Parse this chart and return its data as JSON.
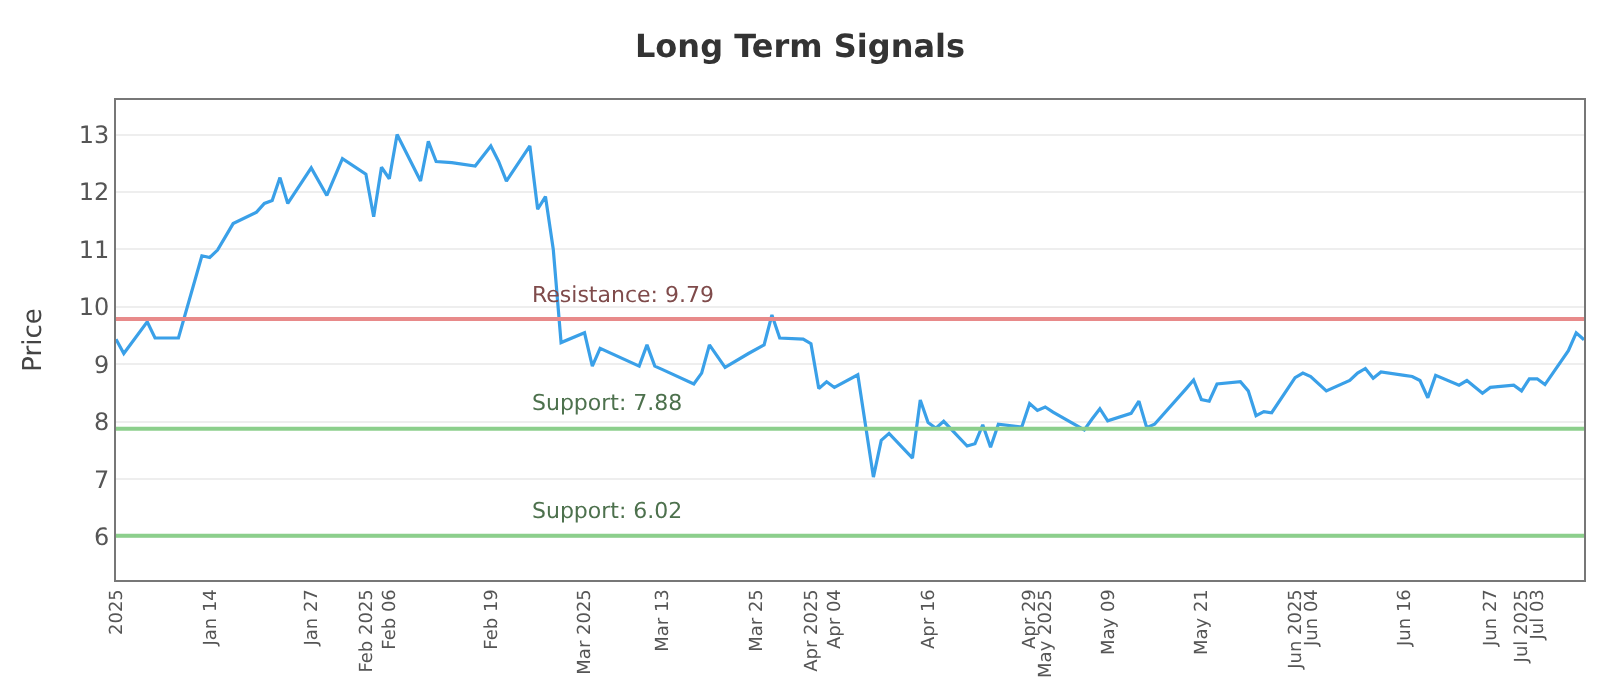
{
  "chart_data": {
    "type": "line",
    "title": "Long Term Signals",
    "ylabel": "Price",
    "x": [
      "2025-01-02",
      "2025-01-03",
      "2025-01-06",
      "2025-01-07",
      "2025-01-10",
      "2025-01-13",
      "2025-01-14",
      "2025-01-15",
      "2025-01-16",
      "2025-01-17",
      "2025-01-20",
      "2025-01-21",
      "2025-01-22",
      "2025-01-23",
      "2025-01-24",
      "2025-01-27",
      "2025-01-29",
      "2025-01-31",
      "2025-02-03",
      "2025-02-04",
      "2025-02-05",
      "2025-02-06",
      "2025-02-07",
      "2025-02-10",
      "2025-02-11",
      "2025-02-12",
      "2025-02-14",
      "2025-02-17",
      "2025-02-19",
      "2025-02-20",
      "2025-02-21",
      "2025-02-24",
      "2025-02-25",
      "2025-02-26",
      "2025-02-27",
      "2025-02-28",
      "2025-03-03",
      "2025-03-04",
      "2025-03-05",
      "2025-03-10",
      "2025-03-11",
      "2025-03-12",
      "2025-03-13",
      "2025-03-17",
      "2025-03-18",
      "2025-03-19",
      "2025-03-21",
      "2025-03-24",
      "2025-03-26",
      "2025-03-27",
      "2025-03-28",
      "2025-03-31",
      "2025-04-01",
      "2025-04-02",
      "2025-04-03",
      "2025-04-04",
      "2025-04-07",
      "2025-04-09",
      "2025-04-10",
      "2025-04-11",
      "2025-04-14",
      "2025-04-15",
      "2025-04-16",
      "2025-04-17",
      "2025-04-18",
      "2025-04-21",
      "2025-04-22",
      "2025-04-23",
      "2025-04-24",
      "2025-04-25",
      "2025-04-28",
      "2025-04-29",
      "2025-04-30",
      "2025-05-01",
      "2025-05-02",
      "2025-05-06",
      "2025-05-07",
      "2025-05-08",
      "2025-05-09",
      "2025-05-12",
      "2025-05-13",
      "2025-05-14",
      "2025-05-15",
      "2025-05-19",
      "2025-05-20",
      "2025-05-21",
      "2025-05-22",
      "2025-05-23",
      "2025-05-26",
      "2025-05-27",
      "2025-05-28",
      "2025-05-29",
      "2025-05-30",
      "2025-06-02",
      "2025-06-03",
      "2025-06-04",
      "2025-06-06",
      "2025-06-09",
      "2025-06-10",
      "2025-06-11",
      "2025-06-12",
      "2025-06-13",
      "2025-06-16",
      "2025-06-17",
      "2025-06-18",
      "2025-06-19",
      "2025-06-20",
      "2025-06-23",
      "2025-06-24",
      "2025-06-26",
      "2025-06-27",
      "2025-06-30",
      "2025-07-01",
      "2025-07-02",
      "2025-07-03",
      "2025-07-04",
      "2025-07-07",
      "2025-07-08",
      "2025-07-09"
    ],
    "series": [
      {
        "color": "#3aa0e8",
        "values": [
          9.44,
          9.19,
          9.74,
          9.46,
          9.46,
          10.89,
          10.86,
          10.99,
          11.22,
          11.45,
          11.65,
          11.8,
          11.85,
          12.25,
          11.8,
          12.42,
          11.94,
          12.58,
          12.31,
          11.57,
          12.43,
          12.23,
          13.0,
          12.19,
          12.88,
          12.53,
          12.51,
          12.45,
          12.8,
          12.53,
          12.19,
          12.8,
          11.7,
          11.92,
          11.0,
          9.38,
          9.55,
          8.97,
          9.28,
          8.97,
          9.34,
          8.97,
          8.91,
          8.66,
          8.85,
          9.34,
          8.95,
          9.19,
          9.34,
          9.86,
          9.46,
          9.44,
          9.36,
          8.58,
          8.7,
          8.6,
          8.82,
          7.04,
          7.68,
          7.8,
          7.37,
          8.38,
          7.99,
          7.89,
          8.01,
          7.58,
          7.62,
          7.95,
          7.56,
          7.96,
          7.91,
          8.32,
          8.2,
          8.26,
          8.17,
          7.86,
          8.05,
          8.23,
          8.02,
          8.15,
          8.36,
          7.9,
          7.96,
          8.57,
          8.73,
          8.39,
          8.36,
          8.66,
          8.7,
          8.54,
          8.11,
          8.18,
          8.16,
          8.77,
          8.85,
          8.79,
          8.54,
          8.72,
          8.85,
          8.93,
          8.76,
          8.87,
          8.81,
          8.79,
          8.72,
          8.42,
          8.81,
          8.64,
          8.72,
          8.5,
          8.6,
          8.64,
          8.54,
          8.75,
          8.75,
          8.65,
          9.24,
          9.55,
          9.43
        ]
      }
    ],
    "xlim": [
      "2025-01-02",
      "2025-07-09"
    ],
    "xticks": [
      {
        "value": "2025-01-02",
        "label": "2025"
      },
      {
        "value": "2025-01-14",
        "label": "Jan 14"
      },
      {
        "value": "2025-01-27",
        "label": "Jan 27"
      },
      {
        "value": "2025-02-03",
        "label": "Feb 2025"
      },
      {
        "value": "2025-02-06",
        "label": "Feb 06"
      },
      {
        "value": "2025-02-19",
        "label": "Feb 19"
      },
      {
        "value": "2025-03-03",
        "label": "Mar 2025"
      },
      {
        "value": "2025-03-13",
        "label": "Mar 13"
      },
      {
        "value": "2025-03-25",
        "label": "Mar 25"
      },
      {
        "value": "2025-04-01",
        "label": "Apr 2025"
      },
      {
        "value": "2025-04-04",
        "label": "Apr 04"
      },
      {
        "value": "2025-04-16",
        "label": "Apr 16"
      },
      {
        "value": "2025-04-29",
        "label": "Apr 29"
      },
      {
        "value": "2025-05-01",
        "label": "May 2025"
      },
      {
        "value": "2025-05-09",
        "label": "May 09"
      },
      {
        "value": "2025-05-21",
        "label": "May 21"
      },
      {
        "value": "2025-06-02",
        "label": "Jun 2025"
      },
      {
        "value": "2025-06-04",
        "label": "Jun 04"
      },
      {
        "value": "2025-06-16",
        "label": "Jun 16"
      },
      {
        "value": "2025-06-27",
        "label": "Jun 27"
      },
      {
        "value": "2025-07-01",
        "label": "Jul 2025"
      },
      {
        "value": "2025-07-03",
        "label": "Jul 03"
      }
    ],
    "ylim": [
      5.25,
      13.6
    ],
    "yticks": [
      6,
      7,
      8,
      9,
      10,
      11,
      12,
      13
    ],
    "grid": "y",
    "marker": "none",
    "line_style": "solid",
    "ref_lines": [
      {
        "axis": "y",
        "value": 9.79,
        "label": "Resistance: 9.79",
        "color": "#e88a8a"
      },
      {
        "axis": "y",
        "value": 7.88,
        "label": "Support: 7.88",
        "color": "#8ccf8c"
      },
      {
        "axis": "y",
        "value": 6.02,
        "label": "Support: 6.02",
        "color": "#8ccf8c"
      }
    ]
  }
}
